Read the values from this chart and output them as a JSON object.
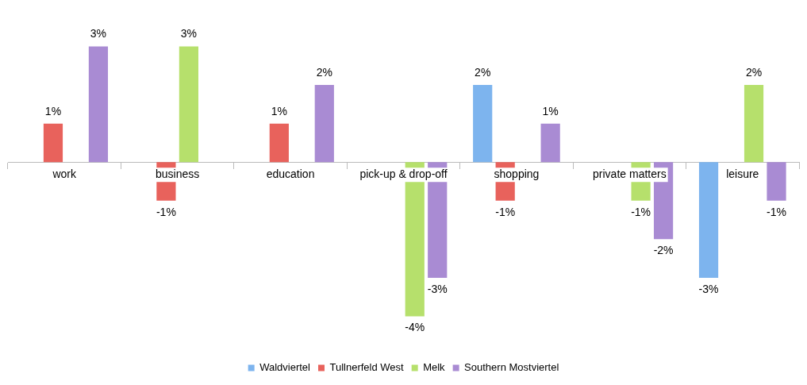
{
  "chart_data": {
    "type": "bar",
    "categories": [
      "work",
      "business",
      "education",
      "pick-up & drop-off",
      "shopping",
      "private matters",
      "leisure"
    ],
    "series": [
      {
        "name": "Waldviertel",
        "color": "#7db4ee",
        "values": [
          0,
          0,
          0,
          0,
          2,
          0,
          -3
        ],
        "value_labels": [
          null,
          null,
          null,
          null,
          "2%",
          null,
          "-3%"
        ]
      },
      {
        "name": "Tullnerfeld West",
        "color": "#e8625c",
        "values": [
          1,
          -1,
          1,
          0,
          -1,
          0,
          0
        ],
        "value_labels": [
          "1%",
          "-1%",
          "1%",
          null,
          "-1%",
          null,
          null
        ]
      },
      {
        "name": "Melk",
        "color": "#b6e06c",
        "values": [
          0,
          3,
          0,
          -4,
          0,
          -1,
          2
        ],
        "value_labels": [
          null,
          "3%",
          null,
          "-4%",
          null,
          "-1%",
          "2%"
        ]
      },
      {
        "name": "Southern Mostviertel",
        "color": "#a98bd3",
        "values": [
          3,
          0,
          2,
          -3,
          1,
          -2,
          -1
        ],
        "value_labels": [
          "3%",
          null,
          "2%",
          "-3%",
          "1%",
          "-2%",
          "-1%"
        ]
      }
    ],
    "tick_labels": "x",
    "grid": false,
    "legend": "bottom"
  }
}
